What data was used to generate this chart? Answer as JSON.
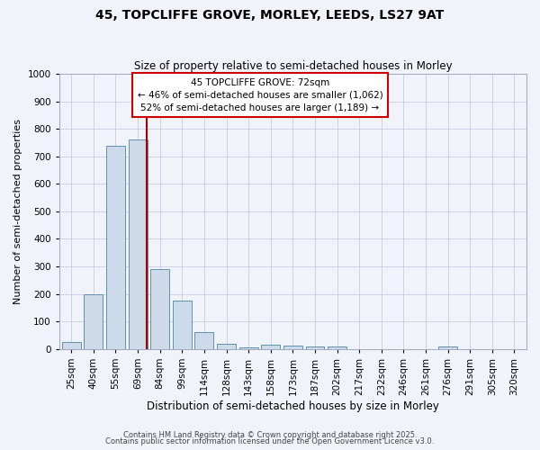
{
  "title": "45, TOPCLIFFE GROVE, MORLEY, LEEDS, LS27 9AT",
  "subtitle": "Size of property relative to semi-detached houses in Morley",
  "xlabel": "Distribution of semi-detached houses by size in Morley",
  "ylabel": "Number of semi-detached properties",
  "bin_labels": [
    "25sqm",
    "40sqm",
    "55sqm",
    "69sqm",
    "84sqm",
    "99sqm",
    "114sqm",
    "128sqm",
    "143sqm",
    "158sqm",
    "173sqm",
    "187sqm",
    "202sqm",
    "217sqm",
    "232sqm",
    "246sqm",
    "261sqm",
    "276sqm",
    "291sqm",
    "305sqm",
    "320sqm"
  ],
  "bar_values": [
    25,
    200,
    740,
    760,
    290,
    175,
    62,
    18,
    5,
    15,
    13,
    8,
    10,
    0,
    0,
    0,
    0,
    10,
    0,
    0,
    0
  ],
  "bar_color": "#ccdaea",
  "bar_edge_color": "#6090b0",
  "vline_x_index": 3.42,
  "vline_color": "#aa0000",
  "ylim": [
    0,
    1000
  ],
  "yticks": [
    0,
    100,
    200,
    300,
    400,
    500,
    600,
    700,
    800,
    900,
    1000
  ],
  "annotation_title": "45 TOPCLIFFE GROVE: 72sqm",
  "annotation_line1": "← 46% of semi-detached houses are smaller (1,062)",
  "annotation_line2": "52% of semi-detached houses are larger (1,189) →",
  "annotation_box_color": "#ffffff",
  "annotation_box_edge": "#cc0000",
  "footer1": "Contains HM Land Registry data © Crown copyright and database right 2025.",
  "footer2": "Contains public sector information licensed under the Open Government Licence v3.0.",
  "background_color": "#f0f4fa",
  "grid_color": "#c8cce0",
  "title_fontsize": 10,
  "subtitle_fontsize": 8.5,
  "xlabel_fontsize": 8.5,
  "ylabel_fontsize": 8,
  "tick_fontsize": 7.5,
  "annot_fontsize": 7.5,
  "footer_fontsize": 6
}
